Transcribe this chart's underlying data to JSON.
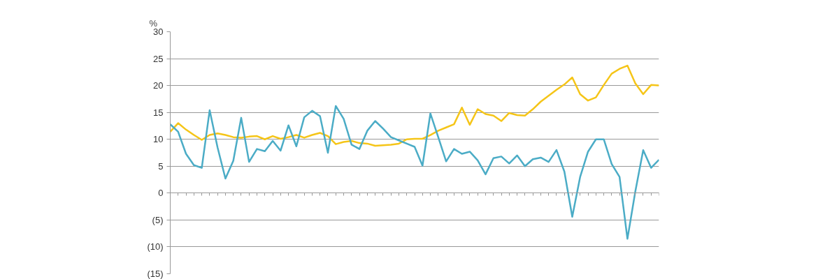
{
  "chart_data": {
    "type": "line",
    "ylabel": "%",
    "categories": [
      null,
      null,
      null,
      null,
      null,
      null,
      null,
      null,
      null,
      null,
      null,
      null,
      null,
      null,
      null,
      null,
      null,
      null,
      null,
      null,
      null,
      null,
      null,
      null,
      null,
      null,
      null,
      null,
      null,
      null,
      null,
      null,
      null,
      null,
      null,
      null,
      null,
      null,
      null,
      null,
      null,
      null,
      null,
      null,
      null,
      null,
      null,
      null,
      null,
      null,
      null,
      null,
      null,
      null,
      null,
      null,
      null,
      null,
      null,
      null,
      null,
      null,
      null
    ],
    "series": [
      {
        "color": "#f5c518",
        "values": [
          11.4,
          13,
          11.8,
          10.8,
          9.9,
          10.8,
          11.1,
          10.8,
          10.4,
          10.3,
          10.5,
          10.6,
          10,
          10.6,
          10.1,
          10.4,
          10.8,
          10.3,
          10.8,
          11.2,
          10.6,
          9.1,
          9.5,
          9.7,
          9.3,
          9.2,
          8.8,
          8.9,
          9,
          9.2,
          10,
          10.1,
          10.1,
          10.8,
          11.6,
          12.2,
          12.8,
          15.9,
          12.7,
          15.6,
          14.7,
          14.4,
          13.4,
          14.9,
          14.5,
          14.4,
          15.6,
          17,
          18.1,
          19.2,
          20.2,
          21.5,
          18.4,
          17.2,
          17.8,
          20.1,
          22.2,
          23.1,
          23.7,
          20.4,
          18.4,
          20.1,
          20
        ]
      },
      {
        "color": "#4bacc6",
        "values": [
          12.8,
          11.4,
          7.3,
          5.2,
          4.7,
          15.4,
          8.5,
          2.7,
          6,
          14,
          5.8,
          8.2,
          7.8,
          9.7,
          7.9,
          12.6,
          8.7,
          14.1,
          15.3,
          14.3,
          7.5,
          16.2,
          13.8,
          9.0,
          8.2,
          11.6,
          13.4,
          12,
          10.4,
          9.8,
          9.2,
          8.6,
          5.1,
          14.8,
          10.4,
          5.9,
          8.2,
          7.3,
          7.7,
          6.1,
          3.5,
          6.5,
          6.8,
          5.5,
          7,
          5,
          6.3,
          6.6,
          5.8,
          8,
          4,
          -4.4,
          3,
          7.7,
          10,
          10,
          5.4,
          3,
          -8.5,
          0.3,
          8,
          4.7,
          6.2
        ]
      }
    ],
    "ylim": [
      -15,
      30
    ],
    "yticks": [
      {
        "value": -15,
        "label": "(15)"
      },
      {
        "value": -10,
        "label": "(10)"
      },
      {
        "value": -5,
        "label": "(5)"
      },
      0,
      5,
      10,
      15,
      20,
      25,
      30
    ],
    "grid": "y",
    "marker": "none",
    "line_style": "solid"
  }
}
